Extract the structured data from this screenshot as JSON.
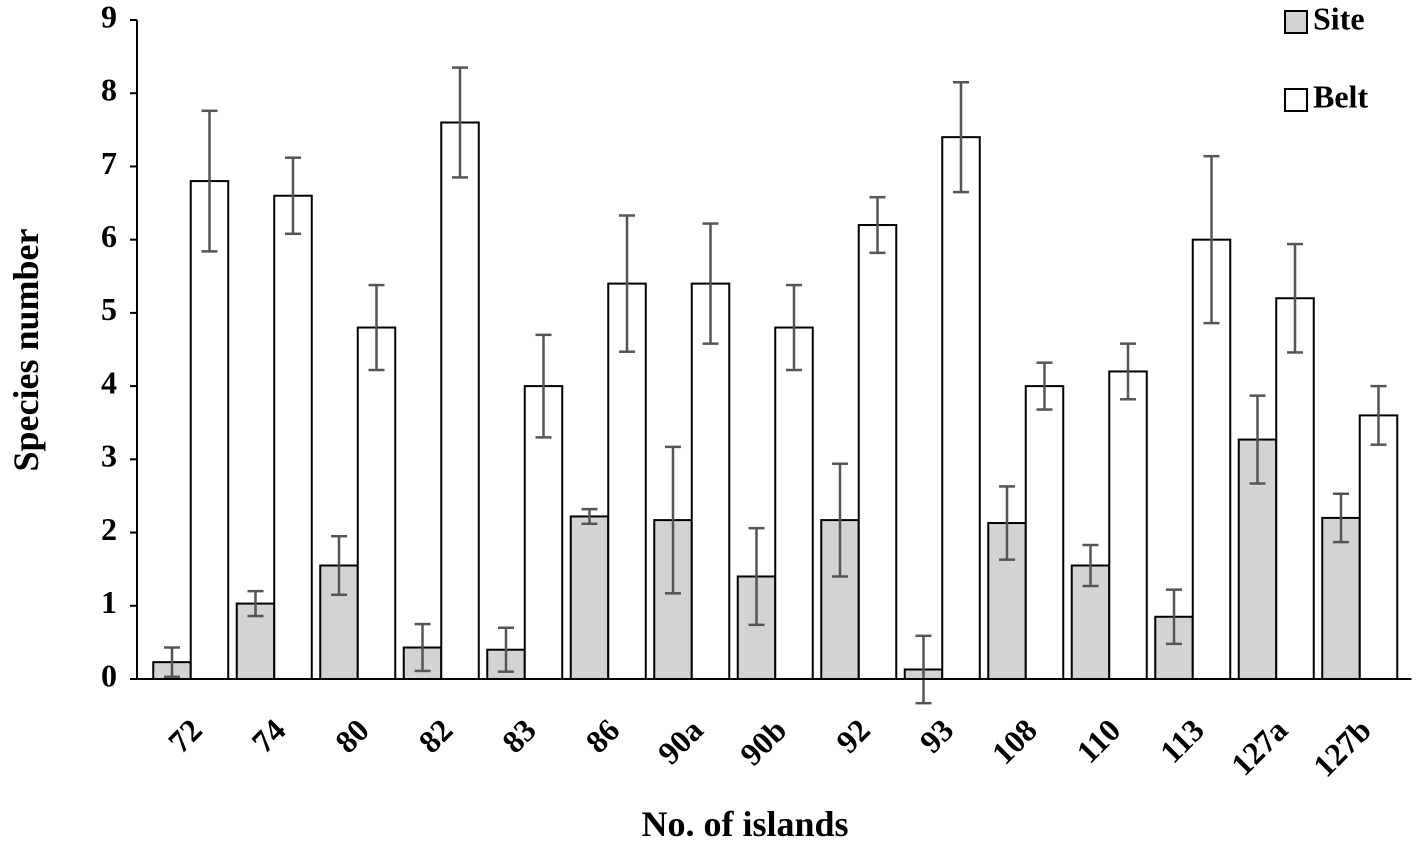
{
  "chart_data": {
    "type": "bar",
    "x_label": "No. of islands",
    "y_label": "Species number",
    "categories": [
      "72",
      "74",
      "80",
      "82",
      "83",
      "86",
      "90a",
      "90b",
      "92",
      "93",
      "108",
      "110",
      "113",
      "127a",
      "127b"
    ],
    "series": [
      {
        "name": "Site",
        "color": "#d3d3d3",
        "values": [
          0.23,
          1.03,
          1.55,
          0.43,
          0.4,
          2.22,
          2.17,
          1.4,
          2.17,
          0.13,
          2.13,
          1.55,
          0.85,
          3.27,
          2.2
        ],
        "errors": [
          0.2,
          0.17,
          0.4,
          0.32,
          0.3,
          0.1,
          1.0,
          0.66,
          0.77,
          0.46,
          0.5,
          0.28,
          0.37,
          0.6,
          0.33
        ]
      },
      {
        "name": "Belt",
        "color": "#ffffff",
        "values": [
          6.8,
          6.6,
          4.8,
          7.6,
          4.0,
          5.4,
          5.4,
          4.8,
          6.2,
          7.4,
          4.0,
          4.2,
          6.0,
          5.2,
          3.6
        ],
        "errors": [
          0.96,
          0.52,
          0.58,
          0.75,
          0.7,
          0.93,
          0.82,
          0.58,
          0.38,
          0.75,
          0.32,
          0.38,
          1.14,
          0.74,
          0.4
        ]
      }
    ],
    "ylim": [
      0,
      9
    ],
    "yticks": [
      0,
      1,
      2,
      3,
      4,
      5,
      6,
      7,
      8,
      9
    ],
    "grid": false,
    "legend": "top-right"
  }
}
